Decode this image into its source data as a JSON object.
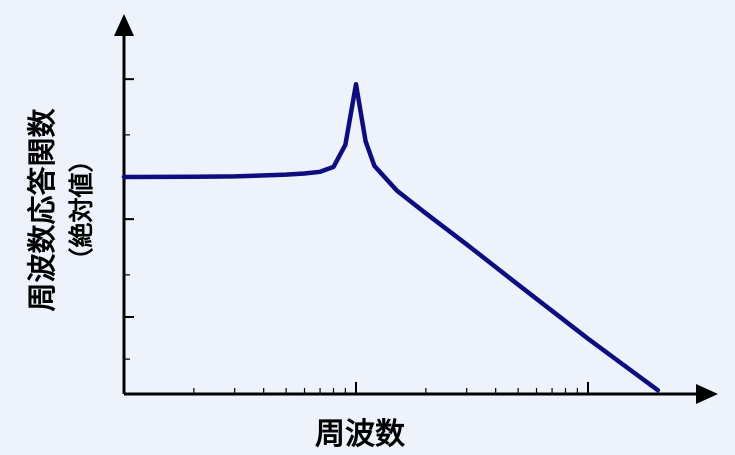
{
  "chart_data": {
    "type": "line",
    "title": "",
    "xlabel": "周波数",
    "ylabel": "周波数応答関数",
    "ylabel_sub": "（絶対値）",
    "x_scale": "log",
    "y_scale": "log",
    "tick_labels_shown": false,
    "grid": false,
    "series": [
      {
        "color": "#0d0d80",
        "x": [
          0.1,
          0.2,
          0.3,
          0.5,
          0.6,
          0.7,
          0.8,
          0.9,
          1.0,
          1.1,
          1.2,
          1.5,
          2.0,
          3.0,
          5.0,
          10.0,
          20.0
        ],
        "y": [
          1.0,
          1.005,
          1.01,
          1.04,
          1.06,
          1.09,
          1.18,
          1.7,
          4.6,
          1.8,
          1.2,
          0.8,
          0.55,
          0.33,
          0.17,
          0.07,
          0.03
        ]
      }
    ]
  }
}
